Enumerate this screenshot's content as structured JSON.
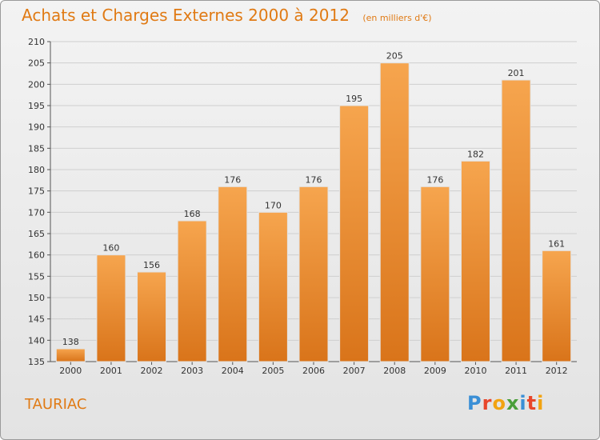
{
  "chart_data": {
    "type": "bar",
    "title": "Achats et Charges Externes 2000 à 2012",
    "subtitle": "(en milliers d'€)",
    "categories": [
      "2000",
      "2001",
      "2002",
      "2003",
      "2004",
      "2005",
      "2006",
      "2007",
      "2008",
      "2009",
      "2010",
      "2011",
      "2012"
    ],
    "values": [
      138,
      160,
      156,
      168,
      176,
      170,
      176,
      195,
      205,
      176,
      182,
      201,
      161
    ],
    "ylim": [
      135,
      210
    ],
    "yticks": [
      135,
      140,
      145,
      150,
      155,
      160,
      165,
      170,
      175,
      180,
      185,
      190,
      195,
      200,
      205,
      210
    ],
    "xlabel": "",
    "ylabel": "",
    "grid": true
  },
  "footer": {
    "commune": "TAURIAC",
    "logo_letters": [
      "P",
      "r",
      "o",
      "x",
      "i",
      "t",
      "i"
    ],
    "logo_colors": [
      "#3a8fd6",
      "#e8462b",
      "#f2a311",
      "#4a9f3a",
      "#3a8fd6",
      "#e8462b",
      "#f2a311"
    ]
  },
  "colors": {
    "bar_light": "#f6a54e",
    "bar_dark": "#d9741a",
    "accent": "#e07a14"
  }
}
